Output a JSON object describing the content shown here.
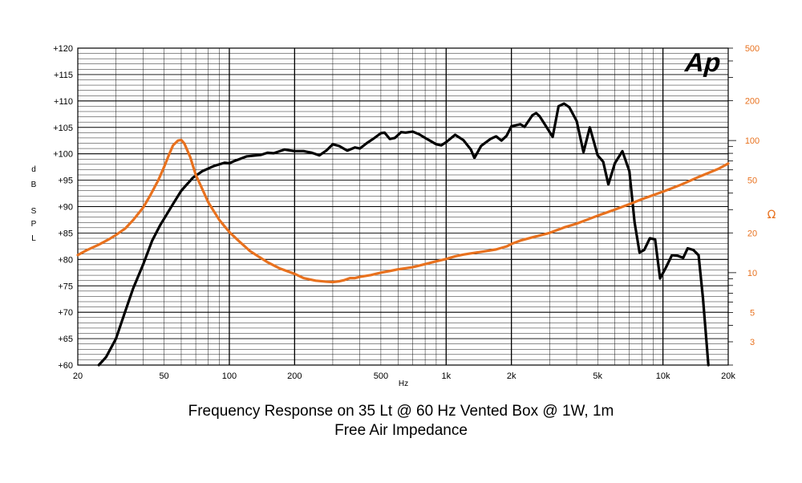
{
  "chart_data": {
    "type": "line",
    "title": "Frequency Response on 35 Lt @ 60 Hz Vented Box @ 1W, 1m",
    "subtitle": "Free Air Impedance",
    "xlabel": "Hz",
    "ylabel_left": "dB SPL",
    "ylabel_right": "Ω",
    "xscale": "log",
    "xlim": [
      20,
      20000
    ],
    "ylim_left": [
      60,
      120
    ],
    "ylim_right": [
      2,
      500
    ],
    "yscale_right": "log",
    "grid": true,
    "logo_text": "Ap",
    "x_ticks": [
      {
        "value": 20,
        "label": "20"
      },
      {
        "value": 50,
        "label": "50"
      },
      {
        "value": 100,
        "label": "100"
      },
      {
        "value": 200,
        "label": "200"
      },
      {
        "value": 500,
        "label": "500"
      },
      {
        "value": 1000,
        "label": "1k"
      },
      {
        "value": 2000,
        "label": "2k"
      },
      {
        "value": 5000,
        "label": "5k"
      },
      {
        "value": 10000,
        "label": "10k"
      },
      {
        "value": 20000,
        "label": "20k"
      }
    ],
    "y_ticks_left": [
      {
        "value": 120,
        "label": "+120"
      },
      {
        "value": 115,
        "label": "+115"
      },
      {
        "value": 110,
        "label": "+110"
      },
      {
        "value": 105,
        "label": "+105"
      },
      {
        "value": 100,
        "label": "+100"
      },
      {
        "value": 95,
        "label": "+95"
      },
      {
        "value": 90,
        "label": "+90"
      },
      {
        "value": 85,
        "label": "+85"
      },
      {
        "value": 80,
        "label": "+80"
      },
      {
        "value": 75,
        "label": "+75"
      },
      {
        "value": 70,
        "label": "+70"
      },
      {
        "value": 65,
        "label": "+65"
      },
      {
        "value": 60,
        "label": "+60"
      }
    ],
    "y_ticks_right": [
      {
        "value": 500,
        "label": "500"
      },
      {
        "value": 200,
        "label": "200"
      },
      {
        "value": 100,
        "label": "100"
      },
      {
        "value": 50,
        "label": "50"
      },
      {
        "value": 20,
        "label": "20"
      },
      {
        "value": 10,
        "label": "10"
      },
      {
        "value": 5,
        "label": "5"
      },
      {
        "value": 3,
        "label": "3"
      }
    ],
    "series": [
      {
        "axis": "left",
        "color": "#000000",
        "points": [
          [
            25,
            60
          ],
          [
            27,
            61.5
          ],
          [
            30,
            65
          ],
          [
            33,
            70
          ],
          [
            36,
            74.5
          ],
          [
            40,
            79
          ],
          [
            44,
            83.5
          ],
          [
            48,
            86.5
          ],
          [
            55,
            90.5
          ],
          [
            60,
            93
          ],
          [
            68,
            95.5
          ],
          [
            75,
            96.7
          ],
          [
            85,
            97.7
          ],
          [
            95,
            98.3
          ],
          [
            100,
            98.2
          ],
          [
            105,
            98.6
          ],
          [
            110,
            98.9
          ],
          [
            120,
            99.5
          ],
          [
            140,
            99.8
          ],
          [
            150,
            100.2
          ],
          [
            160,
            100.1
          ],
          [
            180,
            100.8
          ],
          [
            200,
            100.5
          ],
          [
            220,
            100.5
          ],
          [
            240,
            100.2
          ],
          [
            260,
            99.7
          ],
          [
            280,
            100.6
          ],
          [
            300,
            101.8
          ],
          [
            320,
            101.5
          ],
          [
            350,
            100.6
          ],
          [
            380,
            101.2
          ],
          [
            400,
            101
          ],
          [
            430,
            102
          ],
          [
            460,
            102.8
          ],
          [
            500,
            103.9
          ],
          [
            520,
            104
          ],
          [
            550,
            102.8
          ],
          [
            580,
            103
          ],
          [
            620,
            104.1
          ],
          [
            650,
            104
          ],
          [
            700,
            104.2
          ],
          [
            750,
            103.7
          ],
          [
            800,
            103
          ],
          [
            900,
            101.8
          ],
          [
            950,
            101.6
          ],
          [
            1000,
            102.2
          ],
          [
            1100,
            103.6
          ],
          [
            1200,
            102.6
          ],
          [
            1300,
            100.8
          ],
          [
            1350,
            99.2
          ],
          [
            1450,
            101.5
          ],
          [
            1600,
            102.8
          ],
          [
            1700,
            103.3
          ],
          [
            1800,
            102.5
          ],
          [
            1900,
            103.4
          ],
          [
            2000,
            105.2
          ],
          [
            2200,
            105.6
          ],
          [
            2300,
            105.1
          ],
          [
            2500,
            107.3
          ],
          [
            2600,
            107.7
          ],
          [
            2700,
            107.1
          ],
          [
            2900,
            105.1
          ],
          [
            3100,
            103.2
          ],
          [
            3300,
            109
          ],
          [
            3500,
            109.5
          ],
          [
            3700,
            108.8
          ],
          [
            4000,
            106.2
          ],
          [
            4300,
            100.3
          ],
          [
            4600,
            105
          ],
          [
            5000,
            99.7
          ],
          [
            5300,
            98.5
          ],
          [
            5600,
            94.2
          ],
          [
            6000,
            98.2
          ],
          [
            6500,
            100.5
          ],
          [
            7000,
            96.7
          ],
          [
            7400,
            87
          ],
          [
            7800,
            81.3
          ],
          [
            8200,
            81.8
          ],
          [
            8700,
            84
          ],
          [
            9200,
            83.8
          ],
          [
            9700,
            76.4
          ],
          [
            10300,
            78.4
          ],
          [
            11000,
            80.8
          ],
          [
            11700,
            80.7
          ],
          [
            12400,
            80.3
          ],
          [
            13000,
            82.1
          ],
          [
            13800,
            81.8
          ],
          [
            14600,
            80.8
          ],
          [
            15300,
            72.6
          ],
          [
            16200,
            60
          ]
        ]
      },
      {
        "axis": "right",
        "color": "#e8711e",
        "points": [
          [
            20,
            13.6
          ],
          [
            22,
            14.8
          ],
          [
            25,
            16.3
          ],
          [
            28,
            18
          ],
          [
            30,
            19.3
          ],
          [
            33,
            21.5
          ],
          [
            36,
            25
          ],
          [
            40,
            31
          ],
          [
            43,
            38
          ],
          [
            47,
            50
          ],
          [
            50,
            63
          ],
          [
            53,
            80
          ],
          [
            55,
            92
          ],
          [
            58,
            100
          ],
          [
            60,
            101
          ],
          [
            62,
            95
          ],
          [
            66,
            75
          ],
          [
            70,
            55
          ],
          [
            75,
            43
          ],
          [
            80,
            34
          ],
          [
            90,
            25
          ],
          [
            100,
            20.3
          ],
          [
            110,
            17.5
          ],
          [
            125,
            14.5
          ],
          [
            150,
            12
          ],
          [
            170,
            10.8
          ],
          [
            200,
            9.8
          ],
          [
            220,
            9.1
          ],
          [
            250,
            8.7
          ],
          [
            280,
            8.55
          ],
          [
            300,
            8.5
          ],
          [
            320,
            8.6
          ],
          [
            340,
            8.8
          ],
          [
            360,
            9.1
          ],
          [
            380,
            9.1
          ],
          [
            400,
            9.3
          ],
          [
            450,
            9.6
          ],
          [
            500,
            10
          ],
          [
            550,
            10.3
          ],
          [
            600,
            10.6
          ],
          [
            700,
            11
          ],
          [
            800,
            11.6
          ],
          [
            900,
            12.2
          ],
          [
            1000,
            12.7
          ],
          [
            1100,
            13.3
          ],
          [
            1200,
            13.7
          ],
          [
            1300,
            14
          ],
          [
            1500,
            14.5
          ],
          [
            1700,
            15
          ],
          [
            1900,
            15.8
          ],
          [
            2000,
            16.5
          ],
          [
            2200,
            17.5
          ],
          [
            2500,
            18.5
          ],
          [
            3000,
            20
          ],
          [
            3500,
            22
          ],
          [
            4000,
            23.5
          ],
          [
            5000,
            27
          ],
          [
            6000,
            30
          ],
          [
            7000,
            33
          ],
          [
            8000,
            36
          ],
          [
            10000,
            41
          ],
          [
            12000,
            46
          ],
          [
            15000,
            54
          ],
          [
            18000,
            61
          ],
          [
            20000,
            67
          ]
        ]
      }
    ]
  }
}
